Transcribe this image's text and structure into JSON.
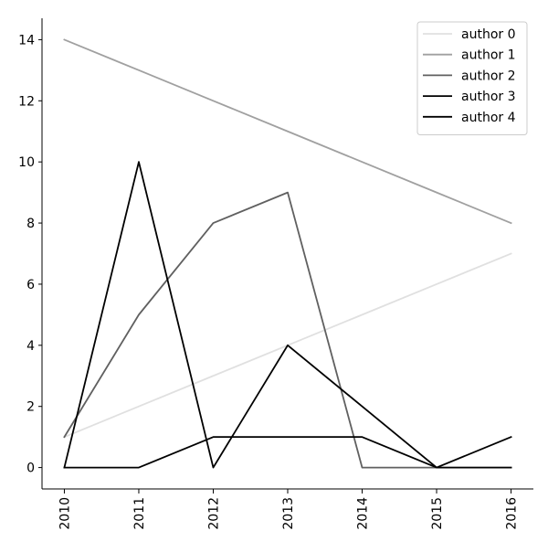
{
  "chart_data": {
    "type": "line",
    "title": "",
    "xlabel": "",
    "ylabel": "",
    "x": [
      2010,
      2011,
      2012,
      2013,
      2014,
      2015,
      2016
    ],
    "x_tick_labels": [
      "2010",
      "2011",
      "2012",
      "2013",
      "2014",
      "2015",
      "2016"
    ],
    "y_ticks": [
      0,
      2,
      4,
      6,
      8,
      10,
      12,
      14
    ],
    "y_tick_labels": [
      "0",
      "2",
      "4",
      "6",
      "8",
      "10",
      "12",
      "14"
    ],
    "xlim": [
      2009.7,
      2016.3
    ],
    "ylim": [
      -0.7,
      14.7
    ],
    "grid": false,
    "legend_position": "top-right",
    "series": [
      {
        "name": "author 0",
        "color": "#e0e0e0",
        "values": [
          1,
          2,
          3,
          4,
          5,
          6,
          7
        ]
      },
      {
        "name": "author 1",
        "color": "#a0a0a0",
        "values": [
          14,
          13,
          12,
          11,
          10,
          9,
          8
        ]
      },
      {
        "name": "author 2",
        "color": "#606060",
        "values": [
          1,
          5,
          8,
          9,
          0,
          0,
          0
        ]
      },
      {
        "name": "author 3",
        "color": "#000000",
        "values": [
          0,
          10,
          0,
          4,
          2,
          0,
          0
        ]
      },
      {
        "name": "author 4",
        "color": "#000000",
        "values": [
          0,
          0,
          1,
          1,
          1,
          0,
          1
        ]
      }
    ]
  }
}
